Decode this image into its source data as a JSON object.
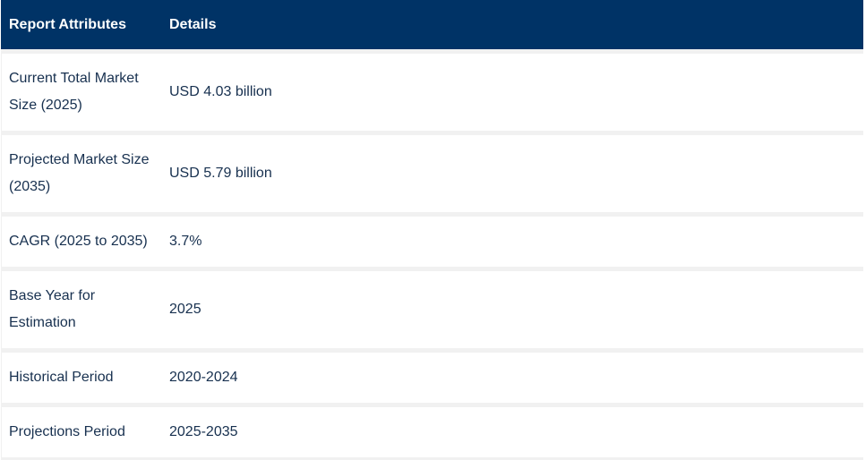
{
  "table": {
    "headers": [
      "Report Attributes",
      "Details"
    ],
    "rows": [
      {
        "attribute": "Current Total Market Size (2025)",
        "detail": "USD 4.03 billion"
      },
      {
        "attribute": "Projected Market Size (2035)",
        "detail": "USD 5.79 billion"
      },
      {
        "attribute": "CAGR (2025 to 2035)",
        "detail": "3.7%"
      },
      {
        "attribute": "Base Year for Estimation",
        "detail": "2025"
      },
      {
        "attribute": "Historical Period",
        "detail": "2020-2024"
      },
      {
        "attribute": "Projections Period",
        "detail": "2025-2035"
      }
    ]
  }
}
